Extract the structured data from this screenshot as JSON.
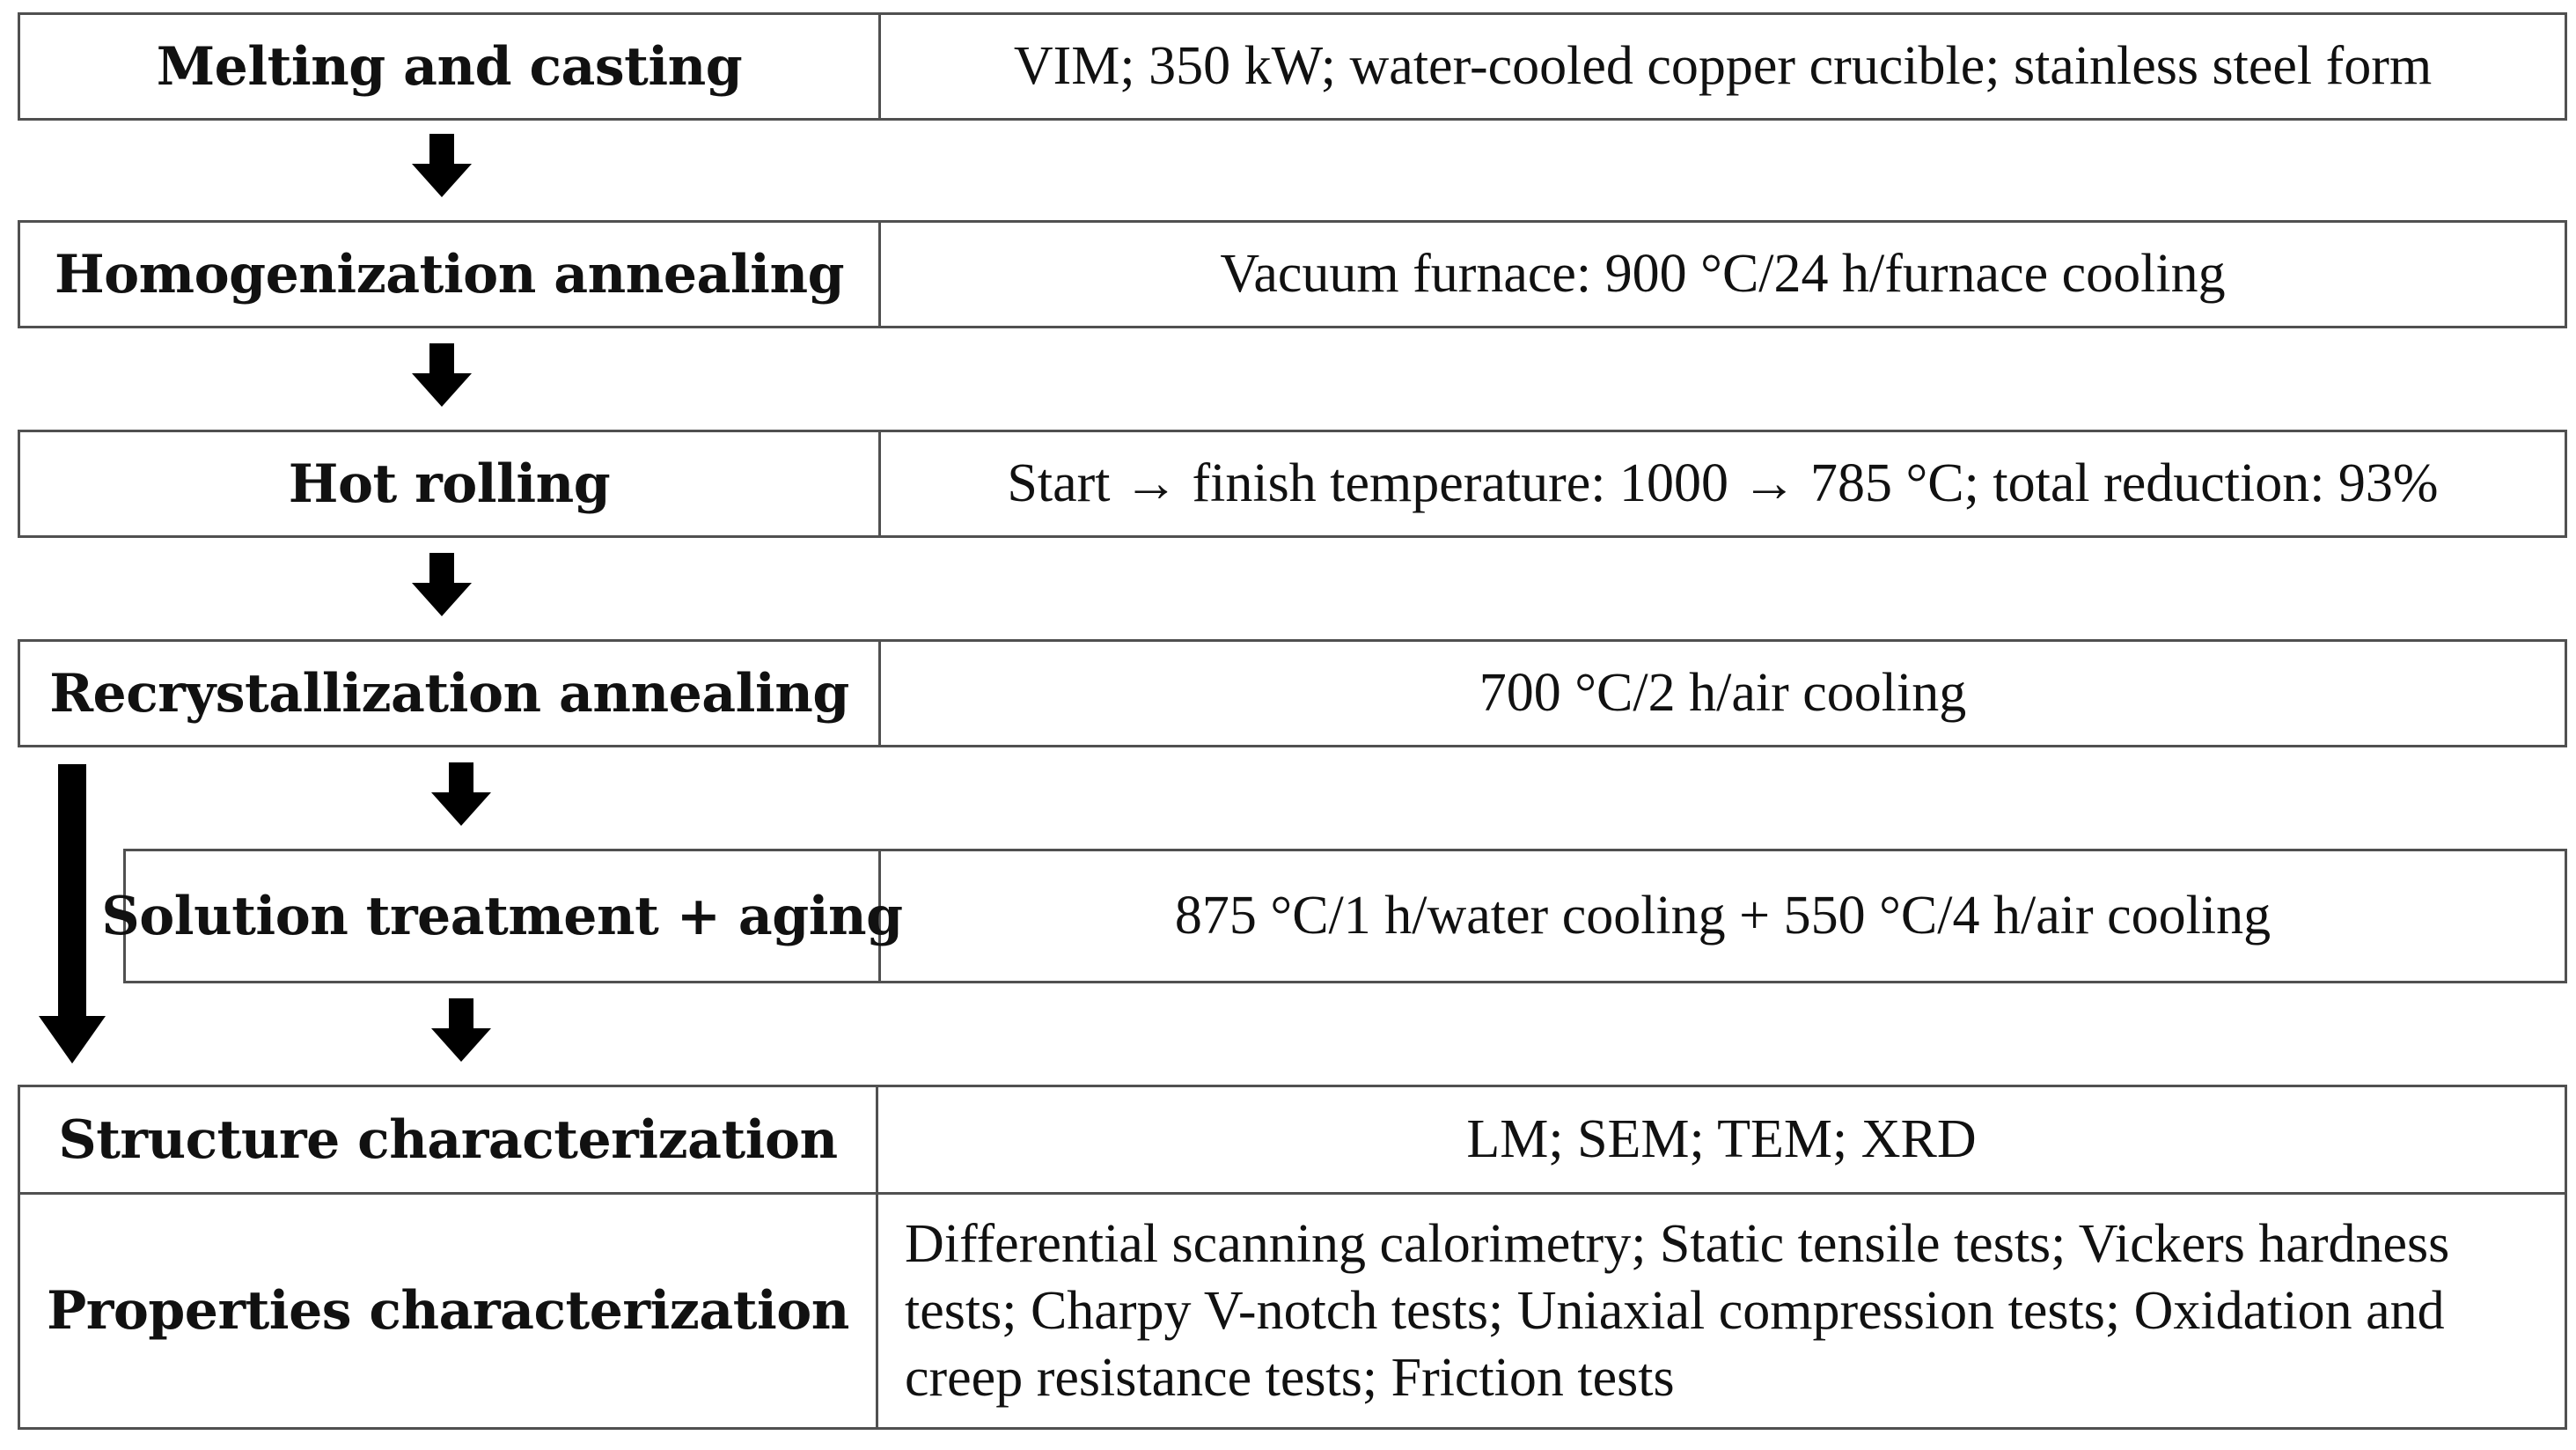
{
  "steps": [
    {
      "label": "Melting and casting",
      "desc": "VIM; 350 kW; water-cooled copper crucible; stainless steel form"
    },
    {
      "label": "Homogenization annealing",
      "desc": "Vacuum furnace: 900 °C/24 h/furnace cooling"
    },
    {
      "label": "Hot rolling",
      "desc": "Start → finish temperature: 1000 → 785 °C; total reduction: 93%"
    },
    {
      "label": "Recrystallization annealing",
      "desc": "700 °C/2 h/air cooling"
    },
    {
      "label": "Solution treatment + aging",
      "desc": "875 °C/1 h/water cooling + 550 °C/4 h/air cooling"
    }
  ],
  "characterization": [
    {
      "label": "Structure characterization",
      "desc": "LM; SEM; TEM; XRD"
    },
    {
      "label": "Properties characterization",
      "desc": "Differential scanning calorimetry; Static tensile tests; Vickers hardness tests; Charpy V-notch tests; Uniaxial compression tests; Oxidation and creep resistance tests; Friction tests"
    }
  ],
  "colors": {
    "border": "#505050",
    "arrow": "#000000",
    "text": "#111111"
  }
}
